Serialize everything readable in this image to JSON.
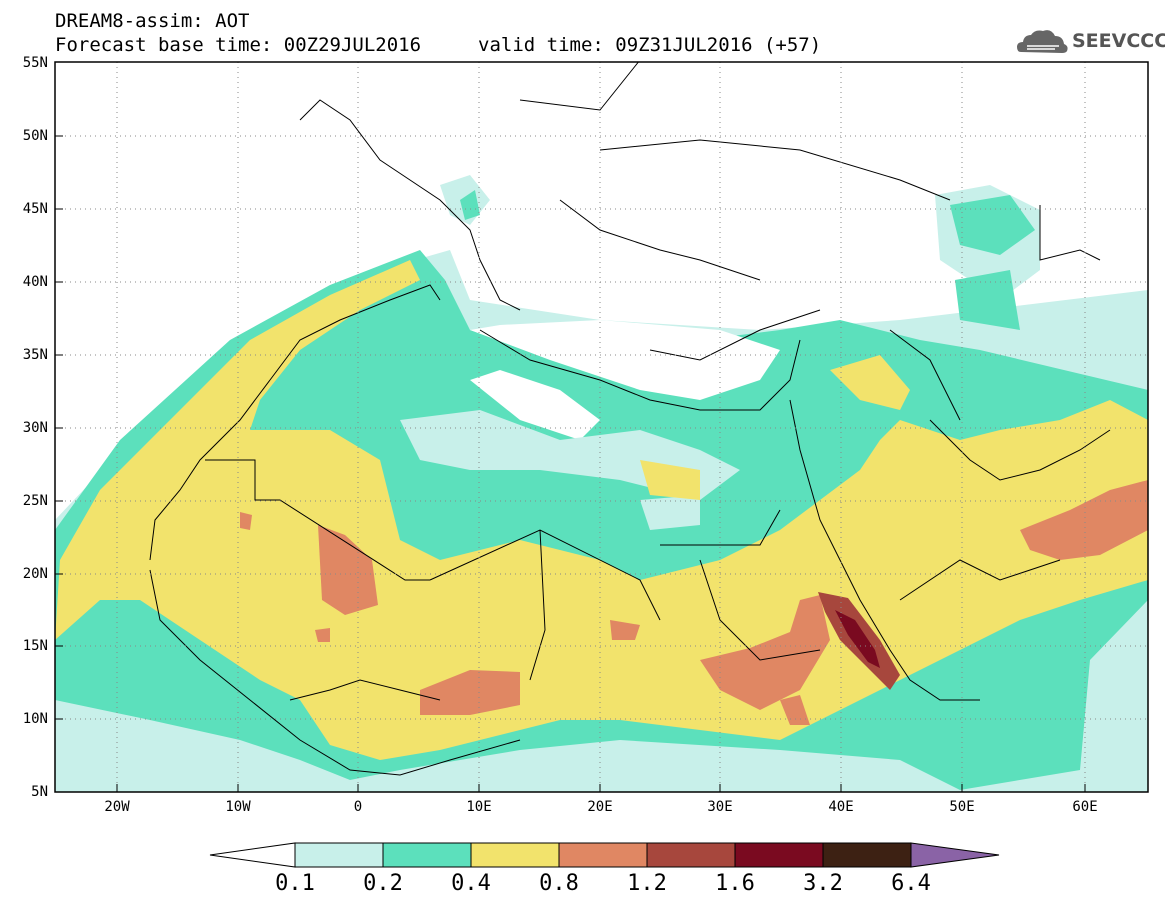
{
  "header": {
    "title": "DREAM8-assim: AOT",
    "base_time": "Forecast base time: 00Z29JUL2016",
    "valid_time": "valid time: 09Z31JUL2016 (+57)"
  },
  "logo": {
    "text": "SEEVCCC",
    "icon": "cloud-icon"
  },
  "map": {
    "lat_labels": [
      "55N",
      "50N",
      "45N",
      "40N",
      "35N",
      "30N",
      "25N",
      "20N",
      "15N",
      "10N",
      "5N"
    ],
    "lon_labels": [
      "20W",
      "10W",
      "0",
      "10E",
      "20E",
      "30E",
      "40E",
      "50E",
      "60E"
    ],
    "lat_range": [
      5,
      55
    ],
    "lon_range": [
      -25,
      65
    ]
  },
  "colorbar": {
    "levels": [
      "0.1",
      "0.2",
      "0.4",
      "0.8",
      "1.2",
      "1.6",
      "3.2",
      "6.4"
    ],
    "colors": [
      "#ffffff",
      "#c8f0ea",
      "#5ce0bc",
      "#f2e36c",
      "#e08763",
      "#a7473d",
      "#7a0a20",
      "#3d2113",
      "#8a63a6"
    ]
  }
}
